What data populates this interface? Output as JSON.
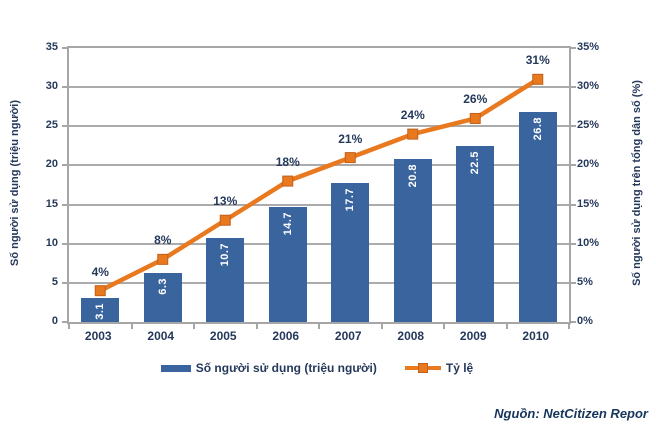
{
  "chart_data": {
    "type": "bar+line",
    "title": "",
    "categories": [
      "2003",
      "2004",
      "2005",
      "2006",
      "2007",
      "2008",
      "2009",
      "2010"
    ],
    "series": [
      {
        "name": "Số người sử dụng (triệu người)",
        "type": "bar",
        "axis": "left",
        "values": [
          3.1,
          6.3,
          10.7,
          14.7,
          17.7,
          20.8,
          22.5,
          26.8
        ],
        "labels": [
          "3.1",
          "6.3",
          "10.7",
          "14.7",
          "17.7",
          "20.8",
          "22.5",
          "26.8"
        ],
        "color": "#3A649E"
      },
      {
        "name": "Tỷ lệ",
        "type": "line",
        "axis": "right",
        "values": [
          4,
          8,
          13,
          18,
          21,
          24,
          26,
          31
        ],
        "labels": [
          "4%",
          "8%",
          "13%",
          "18%",
          "21%",
          "24%",
          "26%",
          "31%"
        ],
        "color": "#E8791F"
      }
    ],
    "left_axis": {
      "title": "Số người sử dụng (triệu người)",
      "min": 0,
      "max": 35,
      "step": 5,
      "ticks": [
        "0",
        "5",
        "10",
        "15",
        "20",
        "25",
        "30",
        "35"
      ]
    },
    "right_axis": {
      "title": "Số người sử dụng trên tổng dân số (%)",
      "min": 0,
      "max": 35,
      "step": 5,
      "ticks": [
        "0%",
        "5%",
        "10%",
        "15%",
        "20%",
        "25%",
        "30%",
        "35%"
      ]
    },
    "grid": true,
    "legend_position": "bottom"
  },
  "source": "Nguồn: NetCitizen Repor",
  "colors": {
    "bar": "#3A649E",
    "line": "#E8791F",
    "line_marker_border": "#C2601A",
    "grid": "#ABABAB",
    "axis": "#A6A6A6",
    "text": "#25395B",
    "bar_label_text": "#FFFFFF",
    "source_text": "#17365D",
    "background": "#FFFFFF"
  }
}
